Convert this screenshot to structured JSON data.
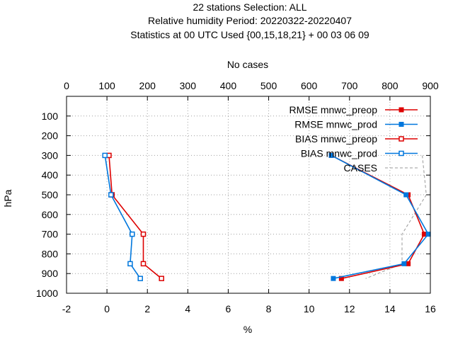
{
  "chart_data": {
    "type": "line",
    "title_lines": [
      "22 stations Selection: ALL",
      "Relative humidity  Period: 20220322-20220407",
      "Statistics at 00 UTC  Used {00,15,18,21} + 00 03 06 09"
    ],
    "x_label": "%",
    "x2_label": "No cases",
    "y_label": "hPa",
    "x_range": [
      -2,
      16
    ],
    "x_ticks": [
      -2,
      0,
      2,
      4,
      6,
      8,
      10,
      12,
      14,
      16
    ],
    "x2_range": [
      0,
      900
    ],
    "x2_ticks": [
      0,
      100,
      200,
      300,
      400,
      500,
      600,
      700,
      800,
      900
    ],
    "y_range": [
      1000,
      0
    ],
    "y_ticks": [
      100,
      200,
      300,
      400,
      500,
      600,
      700,
      800,
      900,
      1000
    ],
    "grid": true,
    "legend_position": "top-right",
    "series": [
      {
        "name": "RMSE mnwc_preop",
        "color": "#dd0000",
        "marker": "filled-square",
        "axis": "x",
        "points": [
          [
            11.1,
            300
          ],
          [
            14.9,
            500
          ],
          [
            15.7,
            700
          ],
          [
            14.9,
            850
          ],
          [
            11.6,
            925
          ]
        ]
      },
      {
        "name": "RMSE mnwc_prod",
        "color": "#0077dd",
        "marker": "filled-square",
        "axis": "x",
        "points": [
          [
            11.1,
            300
          ],
          [
            14.8,
            500
          ],
          [
            15.9,
            700
          ],
          [
            14.7,
            850
          ],
          [
            11.2,
            925
          ]
        ]
      },
      {
        "name": "BIAS mnwc_preop",
        "color": "#dd0000",
        "marker": "open-square",
        "axis": "x",
        "points": [
          [
            0.1,
            300
          ],
          [
            0.25,
            500
          ],
          [
            1.8,
            700
          ],
          [
            1.8,
            850
          ],
          [
            2.7,
            925
          ]
        ]
      },
      {
        "name": "BIAS mnwc_prod",
        "color": "#0077dd",
        "marker": "open-square",
        "axis": "x",
        "points": [
          [
            -0.1,
            300
          ],
          [
            0.2,
            500
          ],
          [
            1.25,
            700
          ],
          [
            1.15,
            850
          ],
          [
            1.65,
            925
          ]
        ]
      },
      {
        "name": "CASES",
        "color": "#999999",
        "marker": "none",
        "dashed": true,
        "axis": "x2",
        "points": [
          [
            880,
            300
          ],
          [
            890,
            500
          ],
          [
            830,
            700
          ],
          [
            830,
            850
          ],
          [
            740,
            925
          ]
        ]
      }
    ]
  }
}
